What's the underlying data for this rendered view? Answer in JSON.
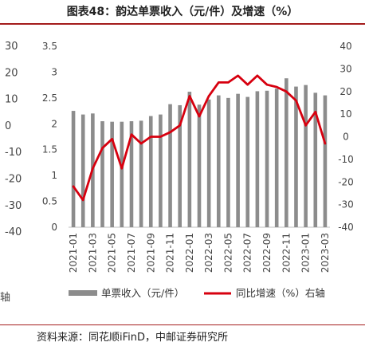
{
  "title": "图表48：韵达单票收入（元/件）及增速（%）",
  "source": "资料来源：同花顺iFinD，中邮证券研究所",
  "left_fragment": {
    "ticks": [
      "30",
      "20",
      "10",
      "0",
      "-10",
      "-20",
      "-30",
      "-40"
    ],
    "text": "轴"
  },
  "chart_data": {
    "type": "bar",
    "categories": [
      "2021-01",
      "2021-02",
      "2021-03",
      "2021-04",
      "2021-05",
      "2021-06",
      "2021-07",
      "2021-08",
      "2021-09",
      "2021-10",
      "2021-11",
      "2021-12",
      "2022-01",
      "2022-02",
      "2022-03",
      "2022-04",
      "2022-05",
      "2022-06",
      "2022-07",
      "2022-08",
      "2022-09",
      "2022-10",
      "2022-11",
      "2022-12",
      "2023-01",
      "2023-02",
      "2023-03"
    ],
    "x_tick_labels": [
      "2021-01",
      "2021-03",
      "2021-05",
      "2021-07",
      "2021-09",
      "2021-11",
      "2022-01",
      "2022-03",
      "2022-05",
      "2022-07",
      "2022-09",
      "2022-11",
      "2023-01",
      "2023-03"
    ],
    "series": [
      {
        "name": "单票收入（元/件）",
        "type": "bar",
        "axis": "left",
        "color": "#8c8c8c",
        "values": [
          2.25,
          2.18,
          2.2,
          2.05,
          2.04,
          2.04,
          2.05,
          2.06,
          2.15,
          2.18,
          2.38,
          2.36,
          2.62,
          2.37,
          2.47,
          2.55,
          2.5,
          2.58,
          2.52,
          2.63,
          2.64,
          2.68,
          2.88,
          2.72,
          2.75,
          2.6,
          2.55
        ]
      },
      {
        "name": "同比增速（%）右轴",
        "type": "line",
        "axis": "right",
        "color": "#d7000f",
        "values": [
          -22,
          -28,
          -14,
          -5,
          -1,
          -14,
          1,
          -3,
          0,
          0,
          2,
          5,
          18,
          9,
          18,
          24,
          24,
          27,
          23,
          27,
          23,
          22,
          20,
          16,
          5,
          11,
          -3
        ]
      }
    ],
    "y_left": {
      "min": 0,
      "max": 3.5,
      "ticks": [
        "0",
        "0.5",
        "1",
        "1.5",
        "2",
        "2.5",
        "3",
        "3.5"
      ]
    },
    "y_right": {
      "min": -40,
      "max": 40,
      "ticks": [
        "40",
        "30",
        "20",
        "10",
        "0",
        "-10",
        "-20",
        "-30",
        "-40"
      ]
    },
    "legend": {
      "position": "bottom",
      "items": [
        "单票收入（元/件）",
        "同比增速（%）右轴"
      ]
    },
    "grid": false
  }
}
